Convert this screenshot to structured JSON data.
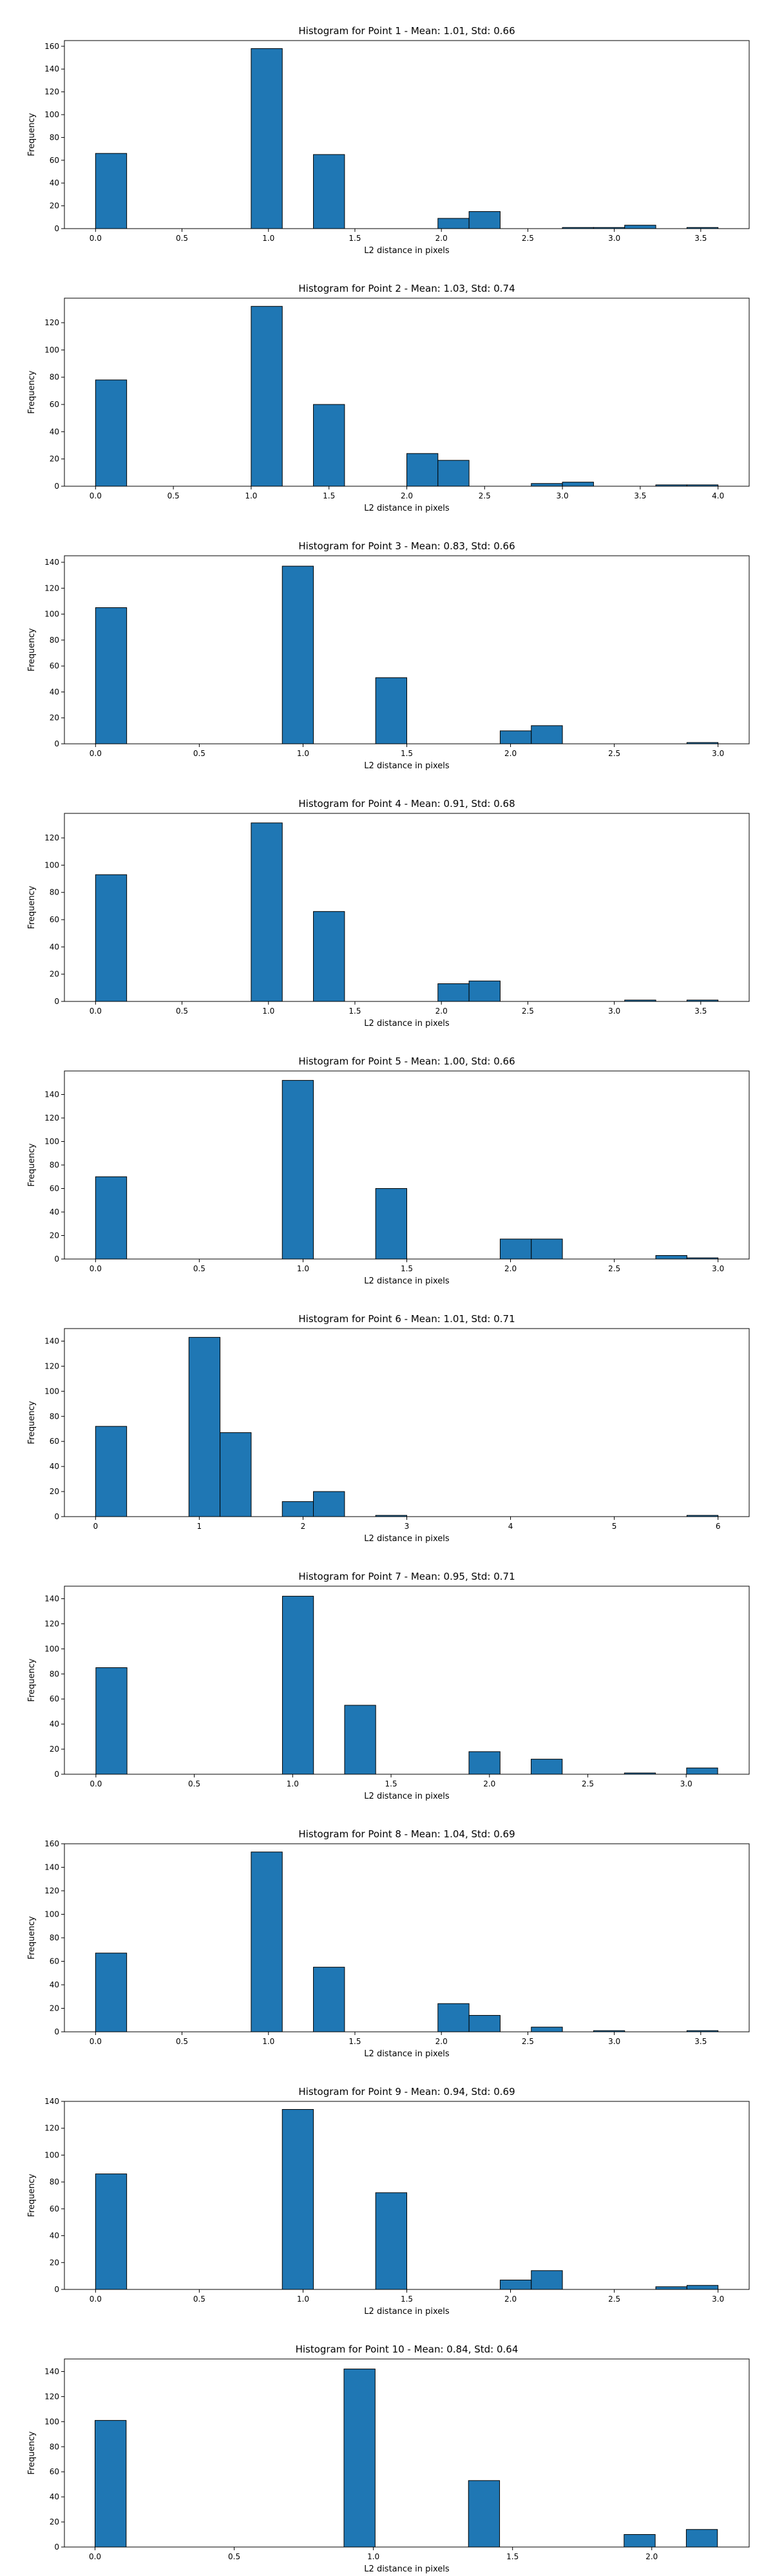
{
  "style": {
    "bar_color": "#1f77b4",
    "edge_color": "#000000"
  },
  "chart_data": [
    {
      "type": "bar",
      "title": "Histogram for Point 1 - Mean: 1.01, Std: 0.66",
      "xlabel": "L2 distance in pixels",
      "ylabel": "Frequency",
      "xlim": [
        -0.18,
        3.78
      ],
      "ylim": [
        0,
        165
      ],
      "xticks": [
        0.0,
        0.5,
        1.0,
        1.5,
        2.0,
        2.5,
        3.0,
        3.5
      ],
      "xtick_labels": [
        "0.0",
        "0.5",
        "1.0",
        "1.5",
        "2.0",
        "2.5",
        "3.0",
        "3.5"
      ],
      "yticks": [
        0,
        20,
        40,
        60,
        80,
        100,
        120,
        140,
        160
      ],
      "bin_edges": [
        0.0,
        0.18,
        0.36,
        0.54,
        0.72,
        0.9,
        1.08,
        1.26,
        1.44,
        1.62,
        1.8,
        1.98,
        2.16,
        2.34,
        2.52,
        2.7,
        2.88,
        3.06,
        3.24,
        3.42,
        3.6
      ],
      "values": [
        66,
        0,
        0,
        0,
        0,
        158,
        0,
        65,
        0,
        0,
        0,
        9,
        15,
        0,
        0,
        1,
        1,
        3,
        0,
        1
      ]
    },
    {
      "type": "bar",
      "title": "Histogram for Point 2 - Mean: 1.03, Std: 0.74",
      "xlabel": "L2 distance in pixels",
      "ylabel": "Frequency",
      "xlim": [
        -0.2,
        4.2
      ],
      "ylim": [
        0,
        138
      ],
      "xticks": [
        0.0,
        0.5,
        1.0,
        1.5,
        2.0,
        2.5,
        3.0,
        3.5,
        4.0
      ],
      "xtick_labels": [
        "0.0",
        "0.5",
        "1.0",
        "1.5",
        "2.0",
        "2.5",
        "3.0",
        "3.5",
        "4.0"
      ],
      "yticks": [
        0,
        20,
        40,
        60,
        80,
        100,
        120
      ],
      "bin_edges": [
        0.0,
        0.2,
        0.4,
        0.6,
        0.8,
        1.0,
        1.2,
        1.4,
        1.6,
        1.8,
        2.0,
        2.2,
        2.4,
        2.6,
        2.8,
        3.0,
        3.2,
        3.4,
        3.6,
        3.8,
        4.0
      ],
      "values": [
        78,
        0,
        0,
        0,
        0,
        132,
        0,
        60,
        0,
        0,
        24,
        19,
        0,
        0,
        2,
        3,
        0,
        0,
        1,
        1
      ]
    },
    {
      "type": "bar",
      "title": "Histogram for Point 3 - Mean: 0.83, Std: 0.66",
      "xlabel": "L2 distance in pixels",
      "ylabel": "Frequency",
      "xlim": [
        -0.15,
        3.15
      ],
      "ylim": [
        0,
        145
      ],
      "xticks": [
        0.0,
        0.5,
        1.0,
        1.5,
        2.0,
        2.5,
        3.0
      ],
      "xtick_labels": [
        "0.0",
        "0.5",
        "1.0",
        "1.5",
        "2.0",
        "2.5",
        "3.0"
      ],
      "yticks": [
        0,
        20,
        40,
        60,
        80,
        100,
        120,
        140
      ],
      "bin_edges": [
        0.0,
        0.15,
        0.3,
        0.45,
        0.6,
        0.75,
        0.9,
        1.05,
        1.2,
        1.35,
        1.5,
        1.65,
        1.8,
        1.95,
        2.1,
        2.25,
        2.4,
        2.55,
        2.7,
        2.85,
        3.0
      ],
      "values": [
        105,
        0,
        0,
        0,
        0,
        0,
        137,
        0,
        0,
        51,
        0,
        0,
        0,
        10,
        14,
        0,
        0,
        0,
        0,
        1
      ]
    },
    {
      "type": "bar",
      "title": "Histogram for Point 4 - Mean: 0.91, Std: 0.68",
      "xlabel": "L2 distance in pixels",
      "ylabel": "Frequency",
      "xlim": [
        -0.18,
        3.78
      ],
      "ylim": [
        0,
        138
      ],
      "xticks": [
        0.0,
        0.5,
        1.0,
        1.5,
        2.0,
        2.5,
        3.0,
        3.5
      ],
      "xtick_labels": [
        "0.0",
        "0.5",
        "1.0",
        "1.5",
        "2.0",
        "2.5",
        "3.0",
        "3.5"
      ],
      "yticks": [
        0,
        20,
        40,
        60,
        80,
        100,
        120
      ],
      "bin_edges": [
        0.0,
        0.18,
        0.36,
        0.54,
        0.72,
        0.9,
        1.08,
        1.26,
        1.44,
        1.62,
        1.8,
        1.98,
        2.16,
        2.34,
        2.52,
        2.7,
        2.88,
        3.06,
        3.24,
        3.42,
        3.6
      ],
      "values": [
        93,
        0,
        0,
        0,
        0,
        131,
        0,
        66,
        0,
        0,
        0,
        13,
        15,
        0,
        0,
        0,
        0,
        1,
        0,
        1
      ]
    },
    {
      "type": "bar",
      "title": "Histogram for Point 5 - Mean: 1.00, Std: 0.66",
      "xlabel": "L2 distance in pixels",
      "ylabel": "Frequency",
      "xlim": [
        -0.15,
        3.15
      ],
      "ylim": [
        0,
        160
      ],
      "xticks": [
        0.0,
        0.5,
        1.0,
        1.5,
        2.0,
        2.5,
        3.0
      ],
      "xtick_labels": [
        "0.0",
        "0.5",
        "1.0",
        "1.5",
        "2.0",
        "2.5",
        "3.0"
      ],
      "yticks": [
        0,
        20,
        40,
        60,
        80,
        100,
        120,
        140
      ],
      "bin_edges": [
        0.0,
        0.15,
        0.3,
        0.45,
        0.6,
        0.75,
        0.9,
        1.05,
        1.2,
        1.35,
        1.5,
        1.65,
        1.8,
        1.95,
        2.1,
        2.25,
        2.4,
        2.55,
        2.7,
        2.85,
        3.0
      ],
      "values": [
        70,
        0,
        0,
        0,
        0,
        0,
        152,
        0,
        0,
        60,
        0,
        0,
        0,
        17,
        17,
        0,
        0,
        0,
        3,
        1
      ]
    },
    {
      "type": "bar",
      "title": "Histogram for Point 6 - Mean: 1.01, Std: 0.71",
      "xlabel": "L2 distance in pixels",
      "ylabel": "Frequency",
      "xlim": [
        -0.3,
        6.3
      ],
      "ylim": [
        0,
        150
      ],
      "xticks": [
        0,
        1,
        2,
        3,
        4,
        5,
        6
      ],
      "xtick_labels": [
        "0",
        "1",
        "2",
        "3",
        "4",
        "5",
        "6"
      ],
      "yticks": [
        0,
        20,
        40,
        60,
        80,
        100,
        120,
        140
      ],
      "bin_edges": [
        0.0,
        0.3,
        0.6,
        0.9,
        1.2,
        1.5,
        1.8,
        2.1,
        2.4,
        2.7,
        3.0,
        3.3,
        3.6,
        3.9,
        4.2,
        4.5,
        4.8,
        5.1,
        5.4,
        5.7,
        6.0
      ],
      "values": [
        72,
        0,
        0,
        143,
        67,
        0,
        12,
        20,
        0,
        1,
        0,
        0,
        0,
        0,
        0,
        0,
        0,
        0,
        0,
        1
      ]
    },
    {
      "type": "bar",
      "title": "Histogram for Point 7 - Mean: 0.95, Std: 0.71",
      "xlabel": "L2 distance in pixels",
      "ylabel": "Frequency",
      "xlim": [
        -0.16,
        3.32
      ],
      "ylim": [
        0,
        150
      ],
      "xticks": [
        0.0,
        0.5,
        1.0,
        1.5,
        2.0,
        2.5,
        3.0
      ],
      "xtick_labels": [
        "0.0",
        "0.5",
        "1.0",
        "1.5",
        "2.0",
        "2.5",
        "3.0"
      ],
      "yticks": [
        0,
        20,
        40,
        60,
        80,
        100,
        120,
        140
      ],
      "bin_edges": [
        0.0,
        0.158,
        0.316,
        0.474,
        0.632,
        0.79,
        0.948,
        1.106,
        1.264,
        1.422,
        1.58,
        1.738,
        1.896,
        2.054,
        2.212,
        2.37,
        2.528,
        2.686,
        2.844,
        3.002,
        3.16
      ],
      "values": [
        85,
        0,
        0,
        0,
        0,
        0,
        142,
        0,
        55,
        0,
        0,
        0,
        18,
        0,
        12,
        0,
        0,
        1,
        0,
        5
      ]
    },
    {
      "type": "bar",
      "title": "Histogram for Point 8 - Mean: 1.04, Std: 0.69",
      "xlabel": "L2 distance in pixels",
      "ylabel": "Frequency",
      "xlim": [
        -0.18,
        3.78
      ],
      "ylim": [
        0,
        160
      ],
      "xticks": [
        0.0,
        0.5,
        1.0,
        1.5,
        2.0,
        2.5,
        3.0,
        3.5
      ],
      "xtick_labels": [
        "0.0",
        "0.5",
        "1.0",
        "1.5",
        "2.0",
        "2.5",
        "3.0",
        "3.5"
      ],
      "yticks": [
        0,
        20,
        40,
        60,
        80,
        100,
        120,
        140,
        160
      ],
      "bin_edges": [
        0.0,
        0.18,
        0.36,
        0.54,
        0.72,
        0.9,
        1.08,
        1.26,
        1.44,
        1.62,
        1.8,
        1.98,
        2.16,
        2.34,
        2.52,
        2.7,
        2.88,
        3.06,
        3.24,
        3.42,
        3.6
      ],
      "values": [
        67,
        0,
        0,
        0,
        0,
        153,
        0,
        55,
        0,
        0,
        0,
        24,
        14,
        0,
        4,
        0,
        1,
        0,
        0,
        1
      ]
    },
    {
      "type": "bar",
      "title": "Histogram for Point 9 - Mean: 0.94, Std: 0.69",
      "xlabel": "L2 distance in pixels",
      "ylabel": "Frequency",
      "xlim": [
        -0.15,
        3.15
      ],
      "ylim": [
        0,
        140
      ],
      "xticks": [
        0.0,
        0.5,
        1.0,
        1.5,
        2.0,
        2.5,
        3.0
      ],
      "xtick_labels": [
        "0.0",
        "0.5",
        "1.0",
        "1.5",
        "2.0",
        "2.5",
        "3.0"
      ],
      "yticks": [
        0,
        20,
        40,
        60,
        80,
        100,
        120,
        140
      ],
      "bin_edges": [
        0.0,
        0.15,
        0.3,
        0.45,
        0.6,
        0.75,
        0.9,
        1.05,
        1.2,
        1.35,
        1.5,
        1.65,
        1.8,
        1.95,
        2.1,
        2.25,
        2.4,
        2.55,
        2.7,
        2.85,
        3.0
      ],
      "values": [
        86,
        0,
        0,
        0,
        0,
        0,
        134,
        0,
        0,
        72,
        0,
        0,
        0,
        7,
        14,
        0,
        0,
        0,
        2,
        3
      ]
    },
    {
      "type": "bar",
      "title": "Histogram for Point 10 - Mean: 0.84, Std: 0.64",
      "xlabel": "L2 distance in pixels",
      "ylabel": "Frequency",
      "xlim": [
        -0.11,
        2.35
      ],
      "ylim": [
        0,
        150
      ],
      "xticks": [
        0.0,
        0.5,
        1.0,
        1.5,
        2.0
      ],
      "xtick_labels": [
        "0.0",
        "0.5",
        "1.0",
        "1.5",
        "2.0"
      ],
      "yticks": [
        0,
        20,
        40,
        60,
        80,
        100,
        120,
        140
      ],
      "bin_edges": [
        0.0,
        0.1118,
        0.2236,
        0.3354,
        0.4472,
        0.559,
        0.6708,
        0.7826,
        0.8944,
        1.0062,
        1.118,
        1.2298,
        1.3416,
        1.4534,
        1.5652,
        1.677,
        1.7888,
        1.9006,
        2.0124,
        2.1242,
        2.236
      ],
      "values": [
        101,
        0,
        0,
        0,
        0,
        0,
        0,
        0,
        142,
        0,
        0,
        0,
        53,
        0,
        0,
        0,
        0,
        10,
        0,
        14
      ]
    }
  ]
}
